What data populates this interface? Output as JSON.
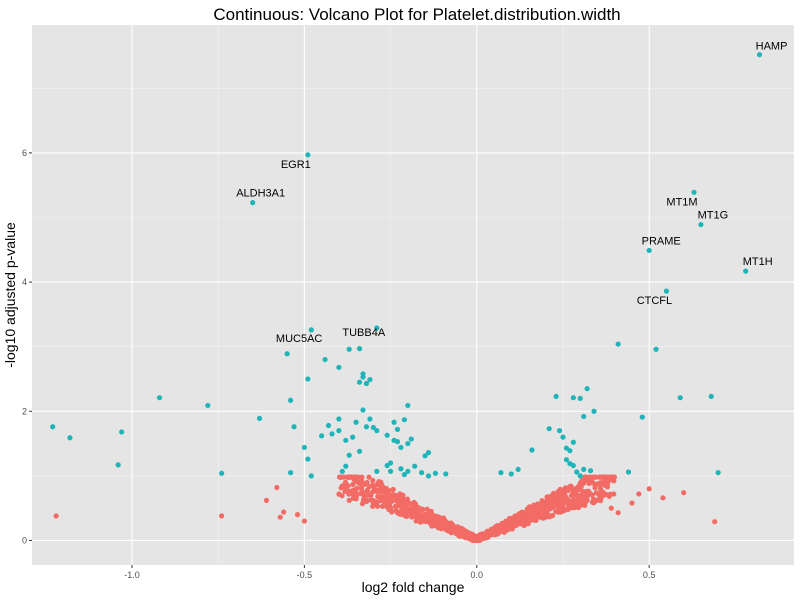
{
  "chart_data": {
    "type": "scatter",
    "title": "Continuous: Volcano Plot for Platelet.distribution.width",
    "xlabel": "log2 fold change",
    "ylabel": "-log10 adjusted p-value",
    "xlim": [
      -1.29,
      0.92
    ],
    "ylim": [
      -0.38,
      7.98
    ],
    "x_ticks": [
      -1.0,
      -0.5,
      0.0,
      0.5
    ],
    "x_tick_labels": [
      "-1.0",
      "-0.5",
      "0.0",
      "0.5"
    ],
    "y_ticks": [
      0,
      2,
      4,
      6
    ],
    "y_tick_labels": [
      "0",
      "2",
      "4",
      "6"
    ],
    "grid": true,
    "legend": "none",
    "colors": {
      "significant": "#1fb5b8",
      "not_significant": "#f26b64",
      "panel_background": "#e5e5e5",
      "grid_major": "#ffffff",
      "grid_minor": "#f2f2f2"
    },
    "significance_threshold": 1.0,
    "labeled_genes": [
      {
        "gene": "HAMP",
        "x": 0.82,
        "y": 7.52
      },
      {
        "gene": "EGR1",
        "x": -0.49,
        "y": 5.97
      },
      {
        "gene": "ALDH3A1",
        "x": -0.65,
        "y": 5.23
      },
      {
        "gene": "MT1M",
        "x": 0.63,
        "y": 5.39
      },
      {
        "gene": "MT1G",
        "x": 0.65,
        "y": 4.89
      },
      {
        "gene": "PRAME",
        "x": 0.5,
        "y": 4.49
      },
      {
        "gene": "MT1H",
        "x": 0.78,
        "y": 4.17
      },
      {
        "gene": "CTCFL",
        "x": 0.55,
        "y": 3.86
      },
      {
        "gene": "MUC5AC",
        "x": -0.55,
        "y": 2.89
      },
      {
        "gene": "TUBB4A",
        "x": -0.29,
        "y": 3.29
      }
    ],
    "significant_points": [
      [
        -0.48,
        3.26
      ],
      [
        -0.37,
        2.96
      ],
      [
        -0.34,
        2.97
      ],
      [
        -0.44,
        2.8
      ],
      [
        -0.4,
        2.68
      ],
      [
        -0.33,
        2.58
      ],
      [
        -0.34,
        2.45
      ],
      [
        -0.33,
        2.53
      ],
      [
        -0.32,
        2.43
      ],
      [
        -0.31,
        2.49
      ],
      [
        -0.49,
        2.5
      ],
      [
        -0.54,
        2.17
      ],
      [
        -0.63,
        1.89
      ],
      [
        -0.78,
        2.09
      ],
      [
        -0.92,
        2.21
      ],
      [
        -0.33,
        2.02
      ],
      [
        -0.4,
        1.88
      ],
      [
        -0.35,
        1.83
      ],
      [
        -0.31,
        1.88
      ],
      [
        -0.3,
        1.75
      ],
      [
        -0.32,
        1.76
      ],
      [
        -0.29,
        1.7
      ],
      [
        -0.36,
        1.6
      ],
      [
        -0.38,
        1.55
      ],
      [
        -0.43,
        1.78
      ],
      [
        -0.4,
        1.7
      ],
      [
        -0.42,
        1.65
      ],
      [
        -0.37,
        1.32
      ],
      [
        -0.34,
        1.38
      ],
      [
        -0.26,
        1.63
      ],
      [
        -0.24,
        1.83
      ],
      [
        -0.23,
        1.72
      ],
      [
        -0.21,
        1.87
      ],
      [
        -0.2,
        2.09
      ],
      [
        -0.29,
        1.07
      ],
      [
        -0.25,
        1.2
      ],
      [
        -0.26,
        1.16
      ],
      [
        -0.38,
        1.15
      ],
      [
        -0.39,
        1.07
      ],
      [
        -0.24,
        1.55
      ],
      [
        -0.22,
        1.44
      ],
      [
        -0.2,
        1.5
      ],
      [
        -0.23,
        1.53
      ],
      [
        -0.19,
        1.57
      ],
      [
        -0.14,
        1.36
      ],
      [
        -0.15,
        1.31
      ],
      [
        -0.18,
        1.15
      ],
      [
        -0.16,
        1.05
      ],
      [
        -0.12,
        1.04
      ],
      [
        -0.14,
        1.0
      ],
      [
        -0.2,
        1.07
      ],
      [
        -0.22,
        1.11
      ],
      [
        -0.09,
        1.03
      ],
      [
        -0.25,
        1.07
      ],
      [
        -0.21,
        1.02
      ],
      [
        -0.53,
        1.76
      ],
      [
        -0.5,
        1.44
      ],
      [
        -0.49,
        1.26
      ],
      [
        -0.54,
        1.05
      ],
      [
        -1.03,
        1.68
      ],
      [
        -1.04,
        1.17
      ],
      [
        -1.18,
        1.59
      ],
      [
        -1.23,
        1.76
      ],
      [
        -0.74,
        1.04
      ],
      [
        -0.48,
        1.0
      ],
      [
        -0.45,
        1.62
      ],
      [
        0.41,
        3.04
      ],
      [
        0.52,
        2.96
      ],
      [
        0.32,
        2.35
      ],
      [
        0.3,
        2.2
      ],
      [
        0.28,
        2.21
      ],
      [
        0.23,
        2.23
      ],
      [
        0.34,
        2.0
      ],
      [
        0.31,
        1.92
      ],
      [
        0.48,
        1.91
      ],
      [
        0.59,
        2.21
      ],
      [
        0.68,
        2.23
      ],
      [
        0.24,
        1.7
      ],
      [
        0.25,
        1.6
      ],
      [
        0.21,
        1.73
      ],
      [
        0.26,
        1.43
      ],
      [
        0.27,
        1.39
      ],
      [
        0.28,
        1.52
      ],
      [
        0.26,
        1.25
      ],
      [
        0.27,
        1.19
      ],
      [
        0.29,
        1.06
      ],
      [
        0.33,
        1.08
      ],
      [
        0.31,
        1.1
      ],
      [
        0.07,
        1.05
      ],
      [
        0.44,
        1.06
      ],
      [
        0.7,
        1.05
      ],
      [
        0.1,
        1.03
      ],
      [
        0.12,
        1.1
      ],
      [
        0.16,
        1.4
      ],
      [
        0.28,
        1.16
      ],
      [
        0.3,
        1.0
      ]
    ],
    "notable_nonsignificant_points": [
      [
        -1.22,
        0.38
      ],
      [
        -0.74,
        0.38
      ],
      [
        -0.57,
        0.36
      ],
      [
        -0.58,
        0.82
      ],
      [
        -0.61,
        0.62
      ],
      [
        -0.56,
        0.44
      ],
      [
        -0.52,
        0.4
      ],
      [
        -0.5,
        0.3
      ],
      [
        0.39,
        0.5
      ],
      [
        0.41,
        0.43
      ],
      [
        0.5,
        0.8
      ],
      [
        0.54,
        0.66
      ],
      [
        0.6,
        0.74
      ],
      [
        0.69,
        0.29
      ],
      [
        0.45,
        0.58
      ],
      [
        0.47,
        0.72
      ]
    ]
  }
}
